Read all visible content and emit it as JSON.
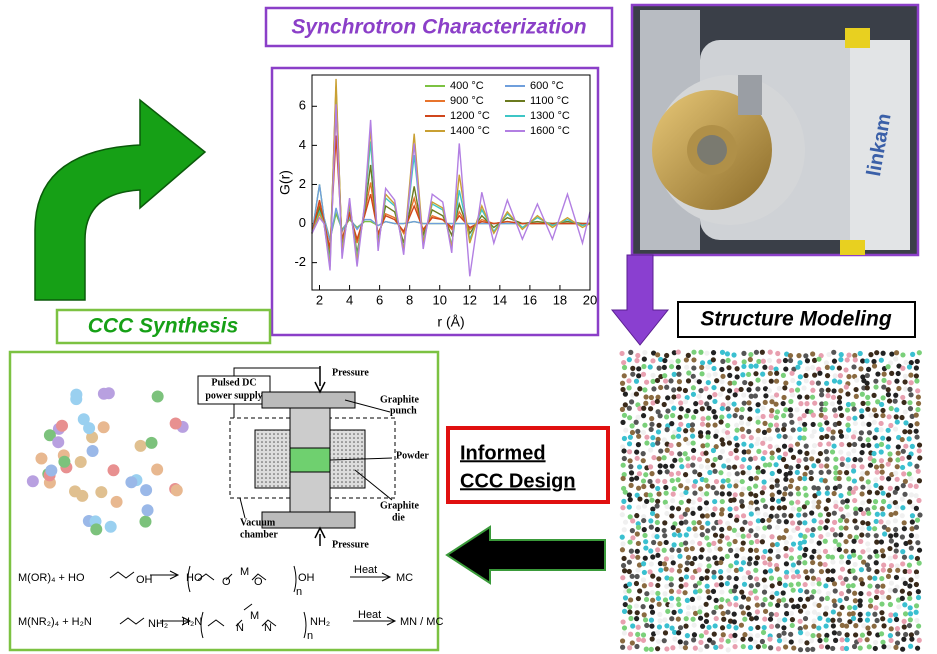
{
  "chart_data": {
    "type": "line",
    "x_label": "r (Å)",
    "y_label": "G(r)",
    "x": [
      1.5,
      2,
      2.3,
      2.7,
      3.1,
      3.5,
      4,
      4.5,
      5,
      5.4,
      5.9,
      6.4,
      7,
      7.6,
      8.3,
      8.9,
      9.5,
      10.2,
      10.8,
      11.3,
      12,
      12.8,
      13.6,
      14.5,
      15.5,
      16.5,
      17.5,
      18.5,
      19.5,
      20
    ],
    "series": [
      {
        "name": "400 °C",
        "color": "#7cc242",
        "values": [
          -0.5,
          2,
          0.3,
          -0.8,
          0.5,
          -0.3,
          0.2,
          -0.2,
          0.1,
          0.1,
          -0.1,
          0.1,
          0,
          0,
          0.1,
          0,
          0,
          0,
          0,
          0,
          0,
          0,
          0,
          0,
          0,
          0,
          0,
          0,
          0,
          0
        ]
      },
      {
        "name": "600 °C",
        "color": "#6f9fdc",
        "values": [
          -0.5,
          2,
          0.3,
          -0.9,
          0.8,
          -0.4,
          0.3,
          -0.3,
          0.2,
          0.2,
          -0.1,
          0.1,
          0,
          0,
          0.1,
          0,
          0,
          0,
          0,
          0,
          0,
          0,
          0,
          0,
          0,
          0,
          0,
          0,
          0,
          0
        ]
      },
      {
        "name": "900 °C",
        "color": "#e8742c",
        "values": [
          -0.5,
          1,
          0,
          -1.5,
          5.8,
          -1,
          0.6,
          -1,
          0.5,
          2.1,
          -0.6,
          0.5,
          0.3,
          -0.5,
          1.3,
          -0.4,
          0.4,
          0.2,
          -0.3,
          0.6,
          -0.3,
          0.2,
          0,
          0.1,
          0,
          0,
          0,
          0,
          0,
          0
        ]
      },
      {
        "name": "1100 °C",
        "color": "#6b7a1f",
        "values": [
          -0.5,
          0.8,
          0,
          -1.8,
          7,
          -1.3,
          0.9,
          -1.5,
          0.6,
          3,
          -0.9,
          0.9,
          0.6,
          -1,
          1.9,
          -0.6,
          0.7,
          0.4,
          -0.6,
          1,
          -0.5,
          0.4,
          -0.2,
          0.3,
          0,
          0.1,
          0,
          0.1,
          0,
          0
        ]
      },
      {
        "name": "1200 °C",
        "color": "#d0461c",
        "values": [
          -0.5,
          1.2,
          0.1,
          -1.3,
          4.5,
          -0.8,
          0.5,
          -0.8,
          0.4,
          1.5,
          -0.5,
          0.4,
          0.2,
          -0.4,
          0.9,
          -0.3,
          0.3,
          0.2,
          -0.2,
          0.4,
          -0.2,
          0.1,
          0,
          0.1,
          0,
          0,
          0,
          0,
          0,
          0
        ]
      },
      {
        "name": "1300 °C",
        "color": "#3ec6c6",
        "values": [
          -0.5,
          0.6,
          0,
          -2,
          6.3,
          -1.4,
          1,
          -1.7,
          0.8,
          4.2,
          -1.1,
          1.3,
          0.9,
          -1.3,
          3.5,
          -0.9,
          1,
          0.7,
          -1.1,
          1.7,
          -0.8,
          0.7,
          -0.4,
          0.5,
          -0.2,
          0.3,
          -0.1,
          0.2,
          -0.1,
          0
        ]
      },
      {
        "name": "1400 °C",
        "color": "#c9a033",
        "values": [
          -0.5,
          0.5,
          0,
          -2.2,
          7.4,
          -1.5,
          1.1,
          -1.9,
          0.9,
          4.9,
          -1.2,
          1.5,
          1,
          -1.4,
          4.6,
          -1,
          1.1,
          0.8,
          -1.2,
          2.5,
          -1,
          0.9,
          -0.5,
          0.6,
          -0.3,
          0.4,
          -0.2,
          0.3,
          -0.2,
          0
        ]
      },
      {
        "name": "1600 °C",
        "color": "#b27fe2",
        "values": [
          -0.5,
          0.3,
          0,
          -2.4,
          6.1,
          -1.8,
          1.3,
          -2.2,
          1,
          5.3,
          -1.4,
          1.8,
          1.2,
          -1.6,
          4.1,
          -1.3,
          1.5,
          1.1,
          -1.5,
          4.1,
          -2.7,
          1.6,
          -1,
          1.2,
          -0.8,
          1,
          -0.8,
          1.5,
          -1,
          0.6
        ]
      }
    ],
    "xlim": [
      1.5,
      20
    ],
    "xticks": [
      2,
      4,
      6,
      8,
      10,
      12,
      14,
      16,
      18,
      20
    ],
    "ylim": [
      -3.4,
      7.6
    ],
    "yticks": [
      -2,
      0,
      2,
      4,
      6
    ],
    "legend": "upper right"
  },
  "diagram": {
    "synchrotron_title": "Synchrotron Characterization",
    "modeling_title": "Structure Modeling",
    "synthesis_title": "CCC Synthesis",
    "design_title": [
      "Informed",
      "CCC Design"
    ],
    "schematic": {
      "power": [
        "Pulsed DC",
        "power supply"
      ],
      "pressure_top": "Pressure",
      "punch": [
        "Graphite",
        "punch"
      ],
      "powder": "Powder",
      "chamber": [
        "Vacuum",
        "chamber"
      ],
      "die": [
        "Graphite",
        "die"
      ],
      "pressure_bottom": "Pressure"
    },
    "equation1": [
      "M(OR)₄ + HO",
      "OH",
      "HO",
      "O",
      "M",
      "O",
      "OH",
      "n",
      "Heat",
      "MC"
    ],
    "equation2": [
      "M(NR₂)₄ + H₂N",
      "NH₂",
      "H₂N",
      "N",
      "M",
      "N",
      "NH₂",
      "n",
      "Heat",
      "MN / MC"
    ]
  }
}
